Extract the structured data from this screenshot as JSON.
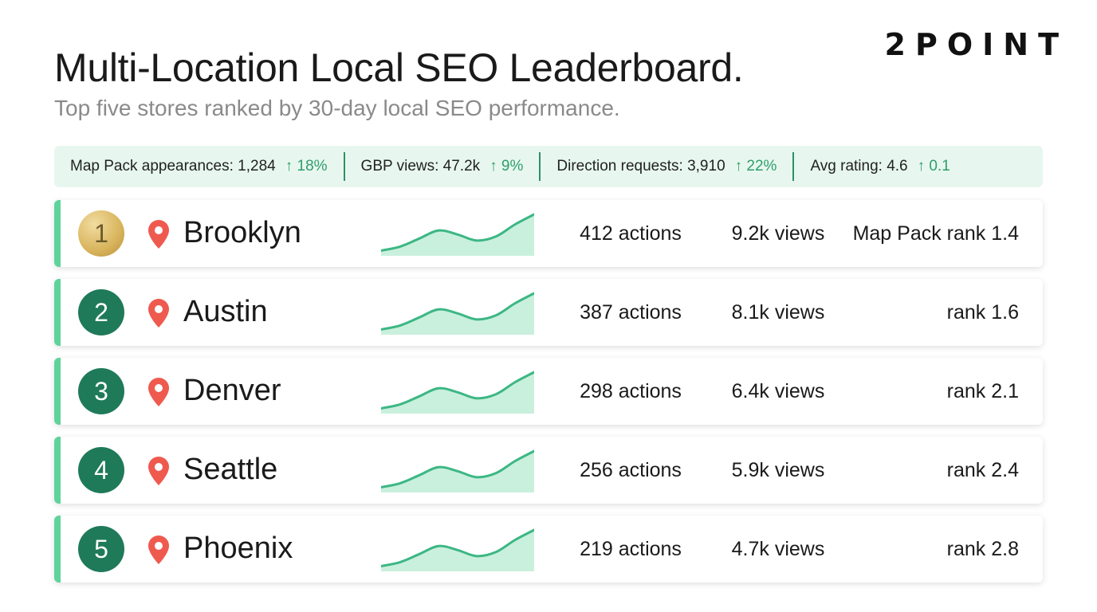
{
  "brand": "2POINT",
  "header": {
    "title": "Multi-Location Local SEO Leaderboard.",
    "subtitle": "Top five stores ranked by 30-day local SEO performance."
  },
  "kpis": [
    {
      "label": "Map Pack appearances: 1,284",
      "delta": "↑ 18%"
    },
    {
      "label": "GBP views: 47.2k",
      "delta": "↑ 9%"
    },
    {
      "label": "Direction requests: 3,910",
      "delta": "↑ 22%"
    },
    {
      "label": "Avg rating: 4.6",
      "delta": "↑ 0.1"
    }
  ],
  "colors": {
    "accent": "#5fd39c",
    "badge": "#1f7a5a",
    "gold": "#d8b45c",
    "kpi_bg": "#e7f7ef",
    "delta": "#2f9e6a",
    "pin": "#ef5a4f",
    "spark_line": "#3cb784",
    "spark_fill": "#c9f0dd"
  },
  "icons": {
    "location": "map-pin-icon"
  },
  "leaderboard": [
    {
      "rank": "1",
      "city": "Brooklyn",
      "actions": "412 actions",
      "views": "9.2k views",
      "map_rank": "Map Pack rank 1.4",
      "trend": [
        2,
        6,
        14,
        22,
        18,
        12,
        16,
        28,
        38
      ]
    },
    {
      "rank": "2",
      "city": "Austin",
      "actions": "387 actions",
      "views": "8.1k views",
      "map_rank": "rank 1.6",
      "trend": [
        2,
        6,
        14,
        22,
        18,
        12,
        16,
        28,
        38
      ]
    },
    {
      "rank": "3",
      "city": "Denver",
      "actions": "298 actions",
      "views": "6.4k views",
      "map_rank": "rank 2.1",
      "trend": [
        2,
        6,
        14,
        22,
        18,
        12,
        16,
        28,
        38
      ]
    },
    {
      "rank": "4",
      "city": "Seattle",
      "actions": "256 actions",
      "views": "5.9k views",
      "map_rank": "rank 2.4",
      "trend": [
        2,
        6,
        14,
        22,
        18,
        12,
        16,
        28,
        38
      ]
    },
    {
      "rank": "5",
      "city": "Phoenix",
      "actions": "219 actions",
      "views": "4.7k views",
      "map_rank": "rank 2.8",
      "trend": [
        2,
        6,
        14,
        22,
        18,
        12,
        16,
        28,
        38
      ]
    }
  ]
}
